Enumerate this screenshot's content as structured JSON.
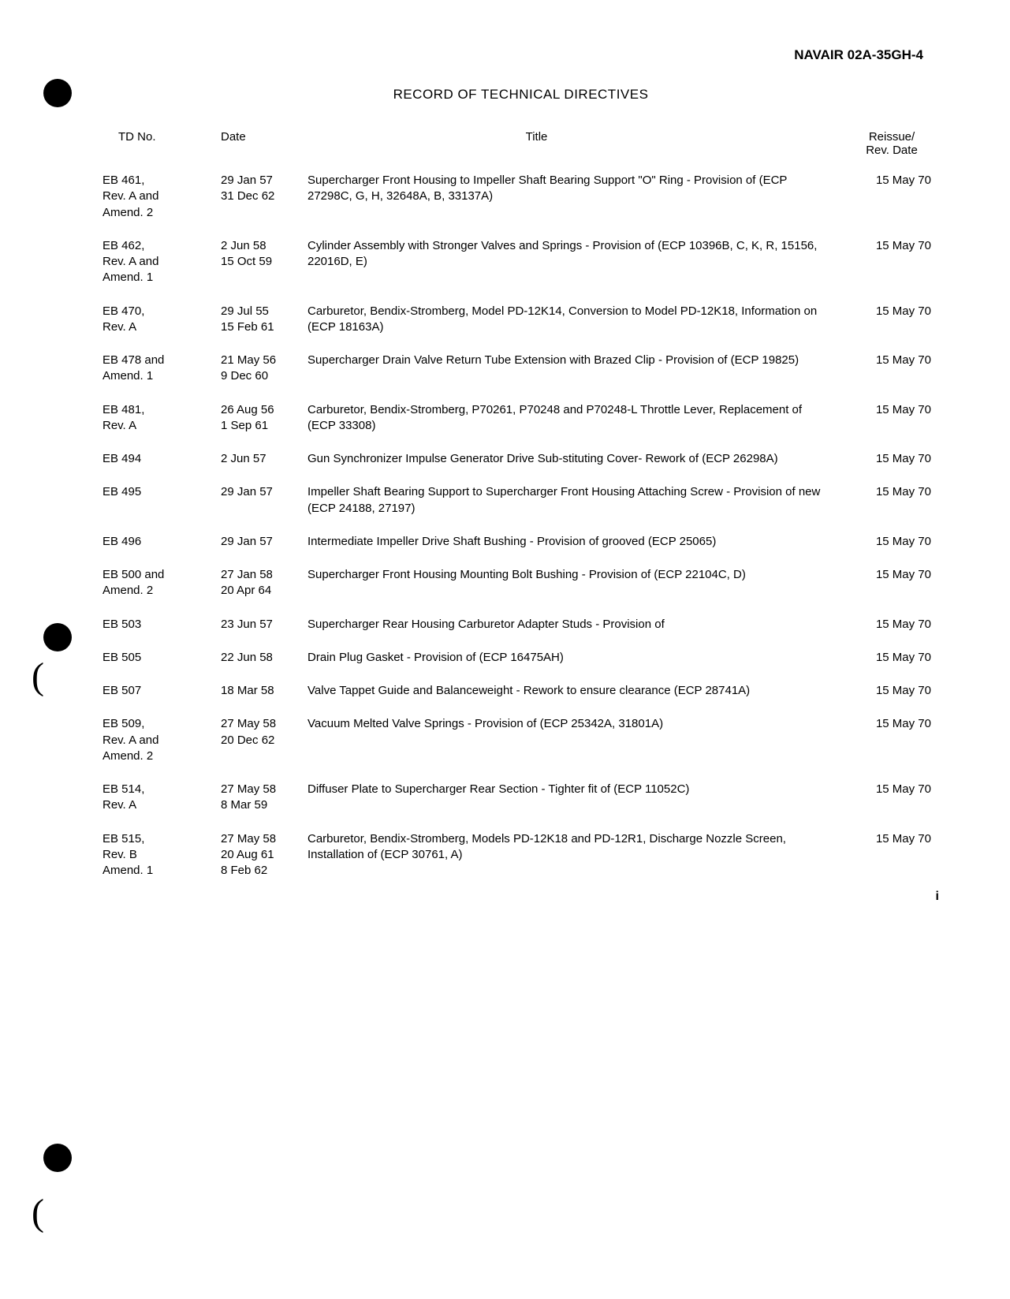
{
  "doc_header": "NAVAIR 02A-35GH-4",
  "page_title": "RECORD OF TECHNICAL DIRECTIVES",
  "columns": {
    "td": "TD No.",
    "date": "Date",
    "title": "Title",
    "reissue_top": "Reissue/",
    "reissue_bot": "Rev. Date"
  },
  "rows": [
    {
      "td": "EB 461,\nRev. A and\nAmend. 2",
      "date": "29 Jan 57\n31 Dec 62",
      "title": "Supercharger Front Housing to Impeller Shaft Bearing Support \"O\" Ring - Provision of (ECP 27298C, G, H, 32648A, B, 33137A)",
      "reissue": "15 May 70"
    },
    {
      "td": "EB 462,\nRev. A and\nAmend. 1",
      "date": "2 Jun 58\n15 Oct 59",
      "title": "Cylinder Assembly with Stronger Valves and Springs - Provision of (ECP 10396B, C, K, R, 15156, 22016D, E)",
      "reissue": "15 May 70"
    },
    {
      "td": "EB 470,\nRev. A",
      "date": "29 Jul 55\n15 Feb 61",
      "title": "Carburetor, Bendix-Stromberg, Model PD-12K14, Conversion to Model PD-12K18, Information on (ECP 18163A)",
      "reissue": "15 May 70"
    },
    {
      "td": "EB 478 and\nAmend. 1",
      "date": "21 May 56\n9 Dec 60",
      "title": "Supercharger Drain Valve Return Tube Extension with Brazed Clip - Provision of (ECP 19825)",
      "reissue": "15 May 70"
    },
    {
      "td": "EB 481,\nRev. A",
      "date": "26 Aug 56\n1 Sep 61",
      "title": "Carburetor, Bendix-Stromberg, P70261, P70248 and P70248-L Throttle Lever, Replacement of (ECP 33308)",
      "reissue": "15 May 70"
    },
    {
      "td": "EB 494",
      "date": "2 Jun 57",
      "title": "Gun Synchronizer Impulse Generator Drive Sub-stituting Cover- Rework of (ECP 26298A)",
      "reissue": "15 May 70"
    },
    {
      "td": "EB 495",
      "date": "29 Jan 57",
      "title": "Impeller Shaft Bearing Support to Supercharger Front Housing Attaching Screw - Provision of new (ECP 24188, 27197)",
      "reissue": "15 May 70"
    },
    {
      "td": "EB 496",
      "date": "29 Jan 57",
      "title": "Intermediate Impeller Drive Shaft Bushing - Provision of grooved (ECP 25065)",
      "reissue": "15 May 70"
    },
    {
      "td": "EB 500 and\nAmend. 2",
      "date": "27 Jan 58\n20 Apr 64",
      "title": "Supercharger Front Housing Mounting Bolt Bushing - Provision of (ECP 22104C, D)",
      "reissue": "15 May 70"
    },
    {
      "td": "EB 503",
      "date": "23 Jun 57",
      "title": "Supercharger Rear Housing Carburetor Adapter Studs - Provision of",
      "reissue": "15 May 70"
    },
    {
      "td": "EB 505",
      "date": "22 Jun 58",
      "title": "Drain Plug Gasket - Provision of (ECP 16475AH)",
      "reissue": "15 May 70"
    },
    {
      "td": "EB 507",
      "date": "18 Mar 58",
      "title": "Valve Tappet Guide and Balanceweight - Rework to ensure clearance (ECP 28741A)",
      "reissue": "15 May 70"
    },
    {
      "td": "EB 509,\nRev. A and\nAmend. 2",
      "date": "27 May 58\n20 Dec 62",
      "title": "Vacuum Melted Valve Springs - Provision of (ECP 25342A, 31801A)",
      "reissue": "15 May 70"
    },
    {
      "td": "EB 514,\nRev. A",
      "date": "27 May 58\n8 Mar 59",
      "title": "Diffuser Plate to Supercharger Rear Section - Tighter fit of (ECP 11052C)",
      "reissue": "15 May 70"
    },
    {
      "td": "EB 515,\nRev. B\nAmend. 1",
      "date": "27 May 58\n20 Aug 61\n8 Feb 62",
      "title": "Carburetor, Bendix-Stromberg, Models PD-12K18 and PD-12R1, Discharge Nozzle Screen, Installation of (ECP 30761, A)",
      "reissue": "15 May 70"
    }
  ],
  "page_num": "i"
}
